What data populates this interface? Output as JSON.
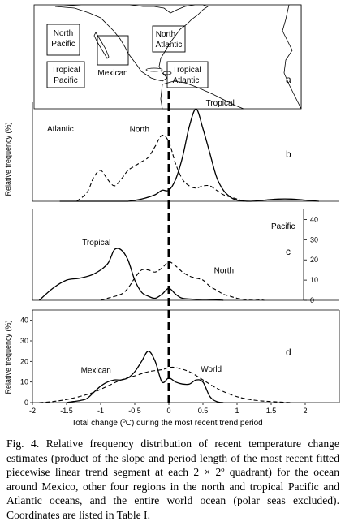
{
  "map": {
    "panel_letter": "a",
    "regions": [
      {
        "id": "north-pacific",
        "lines": [
          "North",
          "Pacific"
        ]
      },
      {
        "id": "tropical-pacific",
        "lines": [
          "Tropical",
          "Pacific"
        ]
      },
      {
        "id": "mexican",
        "lines": [
          "Mexican"
        ]
      },
      {
        "id": "north-atlantic",
        "lines": [
          "North",
          "Atlantic"
        ]
      },
      {
        "id": "tropical-atlantic",
        "lines": [
          "Tropical",
          "Atlantic"
        ]
      }
    ]
  },
  "chart_data": [
    {
      "type": "line",
      "panel": "b",
      "region_label": "Atlantic",
      "ylabel": "Relative frequency (%)",
      "xlim": [
        -2,
        2.5
      ],
      "ylim": [
        0,
        45
      ],
      "series": [
        {
          "name": "North",
          "style": "dashed",
          "x": [
            -1.35,
            -1.2,
            -1.1,
            -1.0,
            -0.9,
            -0.8,
            -0.7,
            -0.6,
            -0.5,
            -0.4,
            -0.3,
            -0.2,
            -0.1,
            0.0,
            0.1,
            0.2,
            0.3,
            0.4,
            0.5,
            0.6,
            0.7,
            0.8,
            0.9,
            1.0,
            1.1
          ],
          "y": [
            0,
            4,
            11,
            14,
            10,
            7,
            10,
            14,
            16,
            18,
            20,
            25,
            30,
            27,
            17,
            10,
            7,
            6,
            7,
            7,
            5,
            3,
            2,
            1,
            0
          ]
        },
        {
          "name": "Tropical",
          "style": "solid",
          "x": [
            -1.6,
            -1.0,
            -0.8,
            -0.6,
            -0.4,
            -0.2,
            -0.1,
            0.0,
            0.1,
            0.2,
            0.3,
            0.4,
            0.5,
            0.6,
            0.7,
            0.8,
            0.9,
            1.0,
            1.2,
            1.4,
            1.6,
            1.8,
            2.0,
            2.2
          ],
          "y": [
            0,
            0,
            0,
            0,
            1,
            3,
            5,
            5,
            10,
            20,
            34,
            42,
            33,
            22,
            11,
            5,
            2,
            0.5,
            0,
            0.5,
            1,
            1,
            0.5,
            0
          ]
        }
      ]
    },
    {
      "type": "line",
      "panel": "c",
      "region_label": "Pacific",
      "ylabel": "",
      "xlim": [
        -2,
        2.5
      ],
      "ylim": [
        0,
        45
      ],
      "yticks": [
        0,
        10,
        20,
        30,
        40
      ],
      "series": [
        {
          "name": "Tropical",
          "style": "solid",
          "x": [
            -1.9,
            -1.7,
            -1.5,
            -1.3,
            -1.1,
            -0.9,
            -0.8,
            -0.7,
            -0.6,
            -0.5,
            -0.4,
            -0.3,
            -0.2,
            -0.1,
            0.0,
            0.1,
            0.2,
            0.4,
            0.6,
            0.8
          ],
          "y": [
            0,
            6,
            10,
            11,
            13,
            18,
            25,
            25,
            20,
            10,
            4,
            2,
            1,
            3,
            6,
            3,
            1,
            0.5,
            0.5,
            0
          ]
        },
        {
          "name": "North",
          "style": "dashed",
          "x": [
            -1.0,
            -0.9,
            -0.7,
            -0.6,
            -0.5,
            -0.4,
            -0.3,
            -0.2,
            -0.1,
            0.0,
            0.1,
            0.2,
            0.3,
            0.4,
            0.5,
            0.6,
            0.7,
            0.8,
            0.9,
            1.0,
            1.1,
            1.2,
            1.3,
            1.4
          ],
          "y": [
            0,
            1,
            3,
            6,
            11,
            15,
            15,
            14,
            16,
            19,
            17,
            14,
            12,
            11,
            10,
            7,
            5,
            3,
            2,
            1,
            0.5,
            0.5,
            0.5,
            0
          ]
        }
      ]
    },
    {
      "type": "line",
      "panel": "d",
      "region_label": "",
      "ylabel": "Relative frequency (%)",
      "xlabel": "Total change (ºC) during the most recent trend period",
      "xlim": [
        -2,
        2.5
      ],
      "ylim": [
        0,
        45
      ],
      "xticks": [
        -2,
        -1.5,
        -1,
        -0.5,
        0,
        0.5,
        1,
        1.5,
        2
      ],
      "yticks": [
        0,
        10,
        20,
        30,
        40
      ],
      "series": [
        {
          "name": "Mexican",
          "style": "solid",
          "x": [
            -1.5,
            -1.4,
            -1.3,
            -1.2,
            -1.1,
            -1.0,
            -0.9,
            -0.8,
            -0.7,
            -0.6,
            -0.5,
            -0.4,
            -0.3,
            -0.2,
            -0.1,
            0.0,
            0.1,
            0.2,
            0.3,
            0.4,
            0.5,
            0.6,
            0.7,
            0.8
          ],
          "y": [
            0,
            0.5,
            1,
            2,
            5,
            8,
            10,
            11,
            11,
            12,
            15,
            20,
            25,
            20,
            10,
            12,
            10,
            9,
            9,
            11,
            10,
            3,
            0.5,
            0
          ]
        },
        {
          "name": "World",
          "style": "dashed",
          "x": [
            -1.9,
            -1.7,
            -1.5,
            -1.3,
            -1.1,
            -0.9,
            -0.7,
            -0.5,
            -0.3,
            -0.1,
            0.0,
            0.1,
            0.3,
            0.5,
            0.7,
            0.9,
            1.1,
            1.3,
            1.5,
            1.8
          ],
          "y": [
            0,
            0.5,
            1.5,
            3,
            5,
            8,
            11,
            13,
            15,
            16,
            17,
            17,
            15,
            11,
            7,
            4,
            2,
            1,
            0.5,
            0
          ]
        }
      ]
    }
  ],
  "caption": "Fig. 4. Relative frequency distribution of recent temperature change estimates (product of the slope and period length of the most recent fitted piecewise linear trend segment at each 2 × 2º quadrant) for the ocean around Mexico, other four regions in the north and tropical Pacific and Atlantic oceans, and the entire world ocean (polar seas excluded). Coordinates are listed in Table I."
}
